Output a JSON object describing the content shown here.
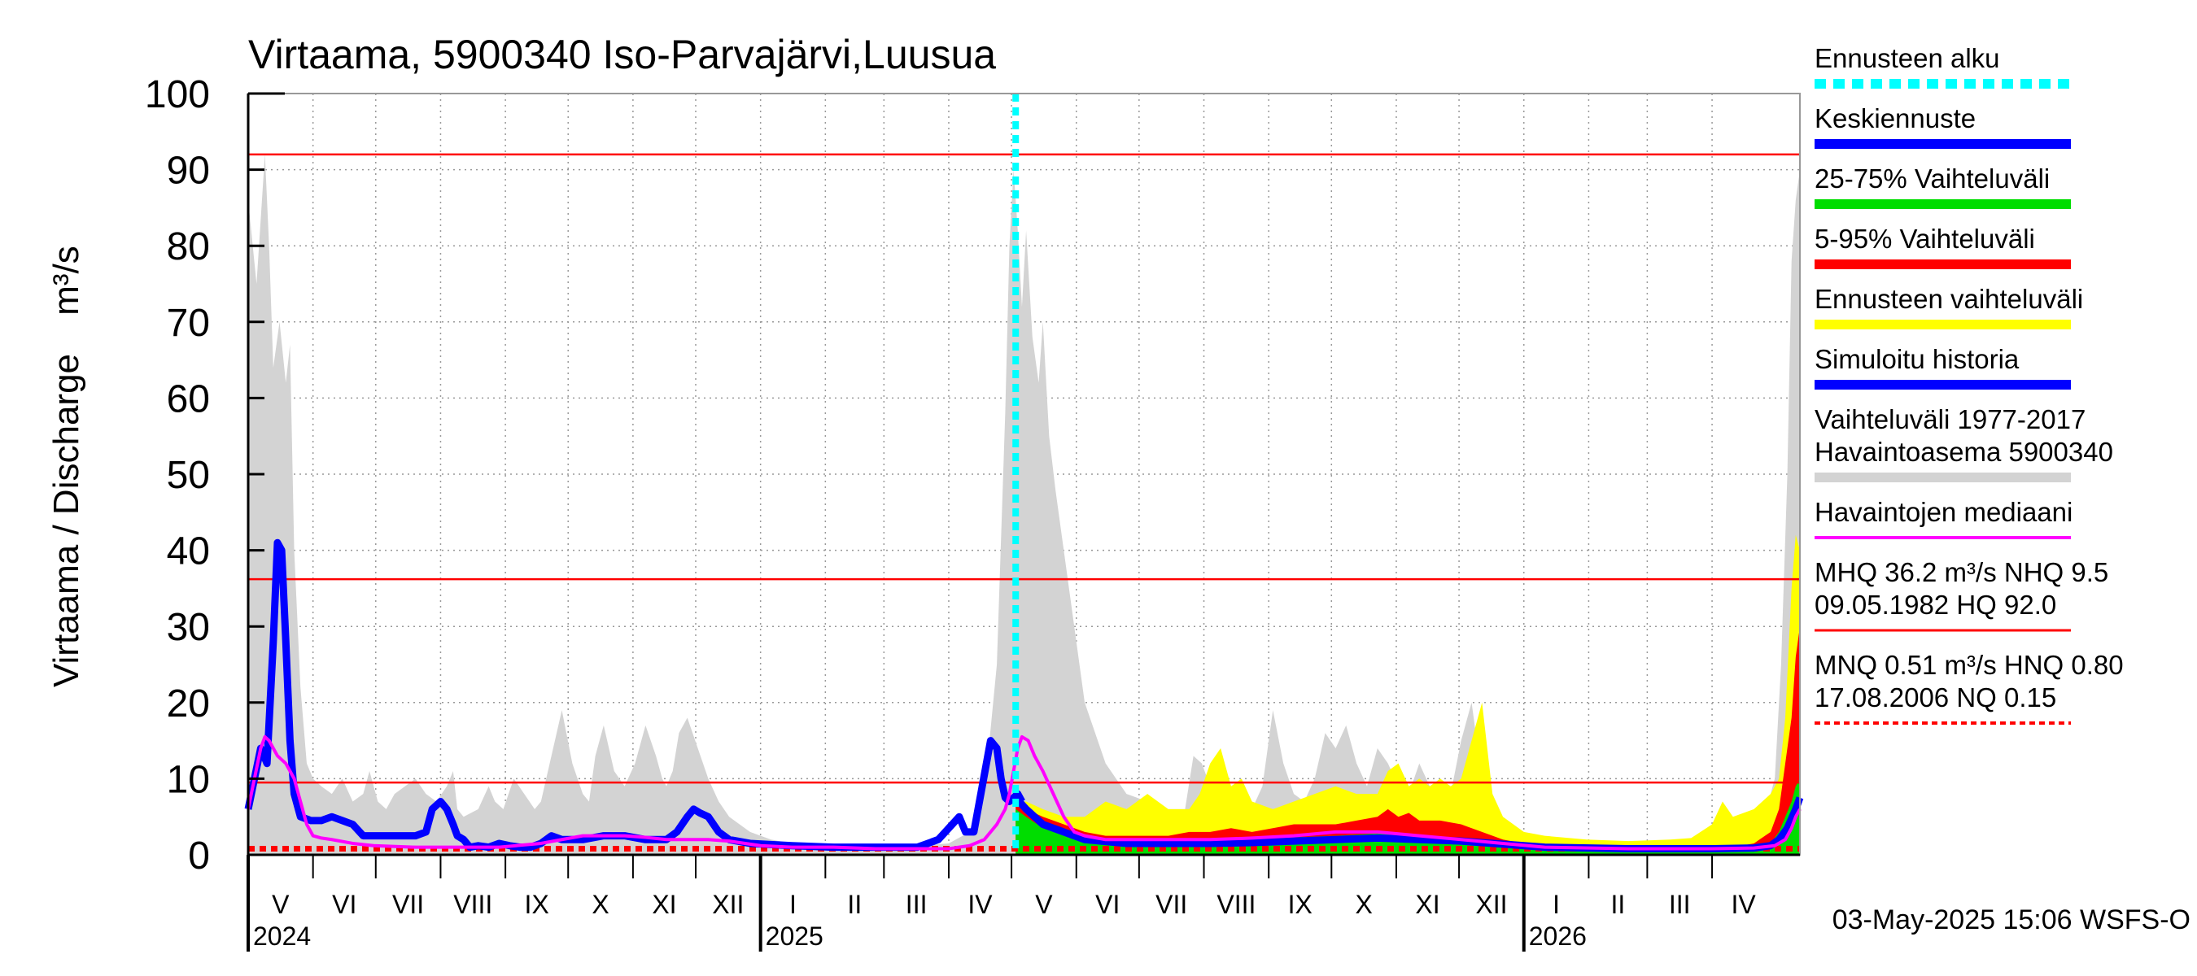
{
  "chart_data": {
    "type": "area",
    "title": "Virtaama, 5900340 Iso-Parvajärvi,Luusua",
    "ylabel": "Virtaama / Discharge",
    "yunit": "m³/s",
    "ylim": [
      0,
      100
    ],
    "yticks": [
      0,
      10,
      20,
      30,
      40,
      50,
      60,
      70,
      80,
      90,
      100
    ],
    "xlim_days": [
      0,
      742
    ],
    "forecast_start_day": 367,
    "months": [
      {
        "label": "V",
        "start": 0,
        "end": 31
      },
      {
        "label": "VI",
        "start": 31,
        "end": 61
      },
      {
        "label": "VII",
        "start": 61,
        "end": 92
      },
      {
        "label": "VIII",
        "start": 92,
        "end": 123
      },
      {
        "label": "IX",
        "start": 123,
        "end": 153
      },
      {
        "label": "X",
        "start": 153,
        "end": 184
      },
      {
        "label": "XI",
        "start": 184,
        "end": 214
      },
      {
        "label": "XII",
        "start": 214,
        "end": 245
      },
      {
        "label": "I",
        "start": 245,
        "end": 276
      },
      {
        "label": "II",
        "start": 276,
        "end": 304
      },
      {
        "label": "III",
        "start": 304,
        "end": 335
      },
      {
        "label": "IV",
        "start": 335,
        "end": 365
      },
      {
        "label": "V",
        "start": 365,
        "end": 396
      },
      {
        "label": "VI",
        "start": 396,
        "end": 426
      },
      {
        "label": "VII",
        "start": 426,
        "end": 457
      },
      {
        "label": "VIII",
        "start": 457,
        "end": 488
      },
      {
        "label": "IX",
        "start": 488,
        "end": 518
      },
      {
        "label": "X",
        "start": 518,
        "end": 549
      },
      {
        "label": "XI",
        "start": 549,
        "end": 579
      },
      {
        "label": "XII",
        "start": 579,
        "end": 610
      },
      {
        "label": "I",
        "start": 610,
        "end": 641
      },
      {
        "label": "II",
        "start": 641,
        "end": 669
      },
      {
        "label": "III",
        "start": 669,
        "end": 700
      },
      {
        "label": "IV",
        "start": 700,
        "end": 730
      }
    ],
    "years": [
      {
        "label": "2024",
        "day": 0
      },
      {
        "label": "2025",
        "day": 245
      },
      {
        "label": "2026",
        "day": 610
      }
    ],
    "reference_lines": [
      {
        "name": "HQ",
        "value": 92.0,
        "color": "#ff0000",
        "style": "solid"
      },
      {
        "name": "MHQ",
        "value": 36.2,
        "color": "#ff0000",
        "style": "solid"
      },
      {
        "name": "NHQ",
        "value": 9.5,
        "color": "#ff0000",
        "style": "solid"
      },
      {
        "name": "HNQ",
        "value": 0.8,
        "color": "#ff0000",
        "style": "dotted"
      }
    ],
    "series": [
      {
        "name": "Vaihteluväli 1977-2017 Havaintoasema 5900340",
        "color": "#d3d3d3",
        "kind": "area",
        "x": [
          0,
          4,
          8,
          10,
          12,
          15,
          18,
          20,
          22,
          25,
          28,
          31,
          35,
          40,
          45,
          50,
          55,
          58,
          62,
          66,
          70,
          75,
          80,
          85,
          90,
          95,
          98,
          100,
          103,
          110,
          115,
          118,
          122,
          127,
          132,
          137,
          140,
          145,
          150,
          155,
          160,
          163,
          166,
          170,
          175,
          180,
          185,
          190,
          195,
          198,
          200,
          203,
          206,
          210,
          215,
          220,
          225,
          230,
          240,
          250,
          260,
          280,
          300,
          320,
          335,
          345,
          352,
          358,
          362,
          364,
          366,
          368,
          370,
          372,
          375,
          378,
          380,
          383,
          386,
          390,
          395,
          400,
          410,
          420,
          430,
          440,
          448,
          452,
          456,
          460,
          470,
          480,
          485,
          490,
          495,
          500,
          505,
          510,
          515,
          520,
          525,
          530,
          535,
          540,
          545,
          550,
          555,
          560,
          565,
          570,
          575,
          580,
          585,
          590,
          600,
          610,
          620,
          640,
          660,
          680,
          700,
          715,
          725,
          730,
          733,
          736,
          738,
          740,
          742
        ],
        "y": [
          86,
          75,
          92,
          80,
          64,
          70,
          62,
          67,
          40,
          22,
          12,
          10,
          9,
          8,
          10,
          7,
          8,
          11,
          7,
          6,
          8,
          9,
          10,
          8,
          7,
          9,
          11,
          6,
          5,
          6,
          9,
          7,
          6,
          10,
          8,
          6,
          7,
          13,
          19,
          12,
          8,
          7,
          13,
          17,
          11,
          9,
          12,
          17,
          13,
          10,
          9,
          11,
          16,
          18,
          14,
          10,
          7,
          5,
          3,
          2,
          1.5,
          1.3,
          1.2,
          1.2,
          1.5,
          3,
          8,
          25,
          58,
          80,
          90,
          82,
          72,
          82,
          68,
          62,
          70,
          55,
          48,
          40,
          30,
          20,
          12,
          8,
          7,
          6,
          6,
          13,
          12,
          9,
          7,
          6,
          9,
          19,
          12,
          8,
          7,
          10,
          16,
          14,
          17,
          12,
          9,
          14,
          12,
          9,
          8,
          12,
          9,
          7,
          8,
          15,
          20,
          10,
          4,
          2,
          1.5,
          1,
          1,
          1.5,
          2,
          3,
          5,
          10,
          25,
          50,
          78,
          86,
          90
        ]
      },
      {
        "name": "Ennusteen vaihteluväli",
        "color": "#ffff00",
        "kind": "area",
        "x": [
          367,
          372,
          380,
          390,
          400,
          410,
          420,
          430,
          440,
          450,
          455,
          460,
          465,
          470,
          475,
          480,
          490,
          500,
          510,
          520,
          530,
          540,
          545,
          550,
          555,
          560,
          565,
          570,
          575,
          580,
          585,
          590,
          595,
          600,
          610,
          620,
          640,
          660,
          680,
          690,
          700,
          705,
          710,
          720,
          728,
          732,
          735,
          738,
          740,
          742
        ],
        "y": [
          7,
          7,
          6,
          5,
          5,
          7,
          6,
          8,
          6,
          6,
          8,
          12,
          14,
          9,
          10,
          7,
          6,
          7,
          8,
          9,
          8,
          8,
          11,
          12,
          9,
          10,
          9,
          10,
          9,
          10,
          15,
          20,
          8,
          5,
          3,
          2.5,
          2,
          1.8,
          2,
          2.2,
          4,
          7,
          5,
          6,
          8,
          10,
          18,
          35,
          42,
          40
        ]
      },
      {
        "name": "5-95% Vaihteluväli",
        "color": "#ff0000",
        "kind": "area",
        "x": [
          367,
          372,
          380,
          390,
          400,
          410,
          420,
          430,
          440,
          450,
          460,
          470,
          480,
          490,
          500,
          510,
          520,
          530,
          540,
          545,
          550,
          555,
          560,
          570,
          580,
          590,
          600,
          610,
          620,
          640,
          660,
          680,
          700,
          710,
          720,
          728,
          732,
          735,
          738,
          740,
          742
        ],
        "y": [
          6.5,
          6,
          5,
          4,
          3,
          2.5,
          2.5,
          2.5,
          2.5,
          3,
          3,
          3.5,
          3,
          3.5,
          4,
          4,
          4,
          4.5,
          5,
          6,
          5,
          5.5,
          4.5,
          4.5,
          4,
          3,
          2,
          1.5,
          1.2,
          1,
          1,
          1,
          1,
          1,
          1.5,
          3,
          6,
          12,
          18,
          26,
          30
        ]
      },
      {
        "name": "25-75% Vaihteluväli",
        "color": "#00dd00",
        "kind": "area",
        "x": [
          367,
          372,
          380,
          390,
          400,
          420,
          440,
          460,
          480,
          500,
          520,
          540,
          560,
          580,
          600,
          620,
          660,
          700,
          720,
          728,
          732,
          735,
          738,
          740,
          742
        ],
        "y": [
          6,
          5,
          3.5,
          2.8,
          2,
          1.8,
          1.8,
          2,
          2,
          2.3,
          2.5,
          2.8,
          2.5,
          2.2,
          1.6,
          1.2,
          0.9,
          0.9,
          1,
          1.5,
          3,
          5,
          7,
          9,
          10
        ]
      },
      {
        "name": "Keskiennuste",
        "color": "#0000ff",
        "kind": "line",
        "x": [
          367,
          372,
          380,
          390,
          400,
          420,
          440,
          460,
          480,
          500,
          520,
          540,
          560,
          580,
          600,
          620,
          660,
          700,
          720,
          728,
          732,
          736,
          740,
          742
        ],
        "y": [
          7.5,
          6,
          4,
          3,
          2,
          1.5,
          1.5,
          1.5,
          1.6,
          1.8,
          2,
          2.2,
          2,
          1.8,
          1.4,
          1,
          0.8,
          0.8,
          0.9,
          1.2,
          2,
          3.5,
          6,
          7.5
        ]
      },
      {
        "name": "Simuloitu historia",
        "color": "#0000ff",
        "kind": "line",
        "x": [
          0,
          3,
          6,
          9,
          12,
          14,
          16,
          18,
          20,
          22,
          25,
          30,
          35,
          40,
          45,
          50,
          55,
          60,
          65,
          70,
          75,
          80,
          85,
          88,
          92,
          95,
          98,
          100,
          103,
          106,
          110,
          115,
          120,
          125,
          130,
          135,
          140,
          145,
          150,
          160,
          170,
          180,
          190,
          200,
          205,
          210,
          213,
          216,
          220,
          225,
          230,
          240,
          260,
          280,
          300,
          320,
          330,
          340,
          343,
          347,
          351,
          355,
          358,
          360,
          362,
          364,
          366,
          368,
          370
        ],
        "y": [
          6,
          10,
          14,
          12,
          28,
          41,
          40,
          28,
          15,
          8,
          5,
          4.5,
          4.5,
          5,
          4.5,
          4,
          2.5,
          2.5,
          2.5,
          2.5,
          2.5,
          2.5,
          3,
          6,
          7,
          6,
          4,
          2.5,
          2,
          1,
          1.2,
          1,
          1.5,
          1.2,
          1,
          1,
          1.5,
          2.5,
          2,
          2,
          2.5,
          2.5,
          2,
          2,
          3,
          5,
          6,
          5.5,
          5,
          3,
          2,
          1.5,
          1.2,
          1,
          1,
          1,
          2,
          5,
          3,
          3,
          9,
          15,
          14,
          10,
          7.5,
          7,
          7.5,
          8,
          7
        ]
      },
      {
        "name": "Havaintojen mediaani",
        "color": "#ff00ff",
        "kind": "line",
        "x": [
          0,
          3,
          6,
          8,
          10,
          14,
          18,
          22,
          25,
          28,
          31,
          35,
          40,
          50,
          60,
          80,
          100,
          120,
          140,
          150,
          160,
          170,
          180,
          190,
          200,
          210,
          220,
          230,
          245,
          260,
          280,
          300,
          320,
          335,
          345,
          352,
          358,
          362,
          364,
          366,
          368,
          370,
          373,
          376,
          380,
          385,
          390,
          395,
          400,
          410,
          420,
          440,
          460,
          480,
          500,
          520,
          540,
          560,
          580,
          600,
          620,
          660,
          700,
          720,
          730,
          735,
          738,
          740,
          742
        ],
        "y": [
          6,
          10,
          14,
          15.5,
          15,
          13,
          12,
          10,
          7,
          4,
          2.5,
          2.2,
          2,
          1.5,
          1.2,
          1,
          1,
          1,
          1.5,
          2,
          2.5,
          2.5,
          2.5,
          2.3,
          2,
          2,
          2,
          1.8,
          1.2,
          1,
          1,
          0.8,
          0.8,
          0.8,
          1.2,
          2,
          4,
          6,
          8,
          11,
          14,
          15.5,
          15,
          13,
          11,
          8,
          5,
          3,
          2.5,
          2,
          2,
          2,
          2,
          2.2,
          2.5,
          3,
          3,
          2.5,
          2,
          1.5,
          1,
          0.8,
          0.8,
          0.9,
          1.2,
          2,
          3.5,
          5,
          6
        ]
      }
    ],
    "legend": [
      {
        "text": "Ennusteen alku",
        "color": "#00ffff",
        "style": "dashed"
      },
      {
        "text": "Keskiennuste",
        "color": "#0000ff",
        "style": "solid"
      },
      {
        "text": "25-75% Vaihteluväli",
        "color": "#00dd00",
        "style": "solid"
      },
      {
        "text": "5-95% Vaihteluväli",
        "color": "#ff0000",
        "style": "solid"
      },
      {
        "text": "Ennusteen vaihteluväli",
        "color": "#ffff00",
        "style": "solid"
      },
      {
        "text": "Simuloitu historia",
        "color": "#0000ff",
        "style": "solid"
      },
      {
        "text": "Vaihteluväli 1977-2017",
        "text2": " Havaintoasema 5900340",
        "color": "#d3d3d3",
        "style": "solid"
      },
      {
        "text": "Havaintojen mediaani",
        "color": "#ff00ff",
        "style": "thin"
      },
      {
        "text": "MHQ 36.2 m³/s NHQ  9.5",
        "text2": "09.05.1982 HQ 92.0",
        "color": "#ff0000",
        "style": "hair"
      },
      {
        "text": "MNQ 0.51 m³/s HNQ 0.80",
        "text2": "17.08.2006 NQ 0.15",
        "color": "#ff0000",
        "style": "dotted"
      }
    ],
    "timestamp": "03-May-2025 15:06 WSFS-O"
  }
}
